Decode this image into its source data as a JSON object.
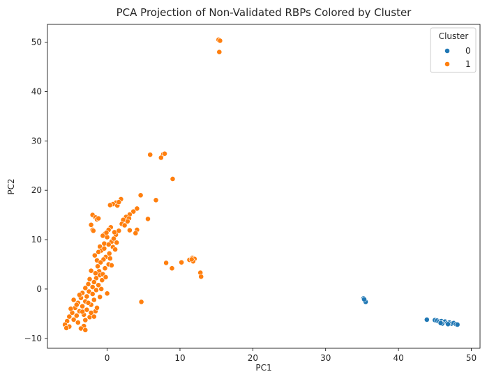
{
  "chart_data": {
    "type": "scatter",
    "title": "PCA Projection of Non-Validated RBPs Colored by Cluster",
    "xlabel": "PC1",
    "ylabel": "PC2",
    "xlim": [
      -8.2,
      51.2
    ],
    "ylim": [
      -12.0,
      53.6
    ],
    "xticks": [
      0,
      10,
      20,
      30,
      40,
      50
    ],
    "yticks": [
      -10,
      0,
      10,
      20,
      30,
      40,
      50
    ],
    "grid": false,
    "legend": {
      "title": "Cluster",
      "placement": "top-right"
    },
    "series": [
      {
        "name": "0",
        "color": "#1f77b4",
        "points": [
          [
            35.2,
            -1.9
          ],
          [
            35.4,
            -2.3
          ],
          [
            35.5,
            -2.6
          ],
          [
            35.3,
            -2.1
          ],
          [
            43.9,
            -6.2
          ],
          [
            45.0,
            -6.3
          ],
          [
            45.3,
            -6.4
          ],
          [
            45.6,
            -6.6
          ],
          [
            45.9,
            -6.5
          ],
          [
            46.2,
            -6.8
          ],
          [
            46.4,
            -6.6
          ],
          [
            46.7,
            -6.9
          ],
          [
            47.0,
            -6.8
          ],
          [
            47.3,
            -7.0
          ],
          [
            47.6,
            -6.9
          ],
          [
            47.9,
            -7.1
          ],
          [
            48.1,
            -7.2
          ],
          [
            46.0,
            -7.0
          ],
          [
            45.8,
            -6.9
          ],
          [
            46.8,
            -7.1
          ]
        ]
      },
      {
        "name": "1",
        "color": "#ff7f0e",
        "points": [
          [
            15.3,
            50.5
          ],
          [
            15.5,
            50.3
          ],
          [
            15.4,
            48.0
          ],
          [
            5.9,
            27.2
          ],
          [
            7.7,
            27.3
          ],
          [
            7.9,
            27.4
          ],
          [
            7.4,
            26.6
          ],
          [
            9.0,
            22.3
          ],
          [
            4.6,
            19.0
          ],
          [
            6.7,
            18.0
          ],
          [
            5.6,
            14.2
          ],
          [
            1.9,
            18.2
          ],
          [
            1.2,
            17.5
          ],
          [
            0.8,
            17.2
          ],
          [
            0.4,
            17.0
          ],
          [
            1.4,
            16.9
          ],
          [
            1.6,
            17.6
          ],
          [
            -2.0,
            15.0
          ],
          [
            -1.6,
            14.5
          ],
          [
            -1.4,
            14.1
          ],
          [
            -1.2,
            14.3
          ],
          [
            4.1,
            16.3
          ],
          [
            3.6,
            15.7
          ],
          [
            3.1,
            15.1
          ],
          [
            2.6,
            14.6
          ],
          [
            3.0,
            14.3
          ],
          [
            2.2,
            14.0
          ],
          [
            2.8,
            13.7
          ],
          [
            2.0,
            13.2
          ],
          [
            2.4,
            12.9
          ],
          [
            -2.2,
            13.0
          ],
          [
            -2.0,
            12.0
          ],
          [
            -1.9,
            11.8
          ],
          [
            4.1,
            12.0
          ],
          [
            3.1,
            11.9
          ],
          [
            3.9,
            11.3
          ],
          [
            1.6,
            11.8
          ],
          [
            1.2,
            11.0
          ],
          [
            1.0,
            11.5
          ],
          [
            0.5,
            12.5
          ],
          [
            0.2,
            12.0
          ],
          [
            -0.3,
            11.2
          ],
          [
            -0.6,
            10.8
          ],
          [
            0.0,
            10.5
          ],
          [
            0.6,
            9.6
          ],
          [
            0.8,
            8.5
          ],
          [
            1.1,
            8.0
          ],
          [
            -0.4,
            9.2
          ],
          [
            -1.0,
            8.6
          ],
          [
            -0.8,
            7.8
          ],
          [
            -1.2,
            7.5
          ],
          [
            0.3,
            7.2
          ],
          [
            -0.2,
            6.5
          ],
          [
            -0.5,
            6.0
          ],
          [
            -1.4,
            5.8
          ],
          [
            -0.9,
            5.4
          ],
          [
            0.2,
            5.0
          ],
          [
            0.6,
            4.8
          ],
          [
            -0.3,
            4.2
          ],
          [
            -1.1,
            3.6
          ],
          [
            -1.6,
            3.2
          ],
          [
            -2.2,
            3.7
          ],
          [
            -1.0,
            2.8
          ],
          [
            -1.5,
            2.2
          ],
          [
            -2.4,
            2.0
          ],
          [
            -0.7,
            1.8
          ],
          [
            -1.8,
            1.4
          ],
          [
            -2.6,
            1.0
          ],
          [
            -1.2,
            0.8
          ],
          [
            -2.0,
            0.4
          ],
          [
            -3.0,
            0.2
          ],
          [
            -1.5,
            -0.2
          ],
          [
            -2.5,
            -0.5
          ],
          [
            -3.4,
            -0.8
          ],
          [
            -2.0,
            -1.0
          ],
          [
            0.0,
            -0.9
          ],
          [
            -2.8,
            -1.5
          ],
          [
            -3.6,
            -1.8
          ],
          [
            -1.8,
            -2.2
          ],
          [
            -3.0,
            -2.5
          ],
          [
            -4.0,
            -2.8
          ],
          [
            -2.2,
            -3.2
          ],
          [
            -3.4,
            -3.5
          ],
          [
            -4.4,
            -3.8
          ],
          [
            -2.8,
            -4.2
          ],
          [
            -3.8,
            -4.5
          ],
          [
            -4.8,
            -4.8
          ],
          [
            -3.2,
            -5.2
          ],
          [
            -4.2,
            -5.4
          ],
          [
            -5.2,
            -5.6
          ],
          [
            -2.4,
            -5.7
          ],
          [
            -3.0,
            -6.3
          ],
          [
            -4.6,
            -6.2
          ],
          [
            -5.5,
            -6.5
          ],
          [
            -4.0,
            -6.8
          ],
          [
            -5.8,
            -7.2
          ],
          [
            -3.2,
            -7.5
          ],
          [
            -5.2,
            -7.6
          ],
          [
            -3.6,
            -8.0
          ],
          [
            -3.0,
            -8.3
          ],
          [
            -5.6,
            -7.9
          ],
          [
            -1.6,
            -4.5
          ],
          [
            -1.4,
            -3.8
          ],
          [
            -2.2,
            -4.8
          ],
          [
            -1.8,
            -5.6
          ],
          [
            -0.6,
            3.0
          ],
          [
            -0.2,
            2.4
          ],
          [
            -1.3,
            4.6
          ],
          [
            -1.7,
            6.8
          ],
          [
            -0.4,
            8.2
          ],
          [
            0.2,
            9.0
          ],
          [
            -0.1,
            11.4
          ],
          [
            0.9,
            10.2
          ],
          [
            1.3,
            9.4
          ],
          [
            0.4,
            6.2
          ],
          [
            -0.8,
            0.0
          ],
          [
            -1.0,
            -1.6
          ],
          [
            -2.6,
            -2.8
          ],
          [
            -3.8,
            -1.2
          ],
          [
            -4.6,
            -2.2
          ],
          [
            -5.0,
            -4.0
          ],
          [
            -4.2,
            -3.2
          ],
          [
            -3.4,
            -4.6
          ],
          [
            8.1,
            5.3
          ],
          [
            8.9,
            4.2
          ],
          [
            10.2,
            5.4
          ],
          [
            11.3,
            5.9
          ],
          [
            11.7,
            6.3
          ],
          [
            12.0,
            6.1
          ],
          [
            11.8,
            5.6
          ],
          [
            11.6,
            6.0
          ],
          [
            12.8,
            3.3
          ],
          [
            12.9,
            2.5
          ],
          [
            4.7,
            -2.6
          ]
        ]
      }
    ]
  }
}
